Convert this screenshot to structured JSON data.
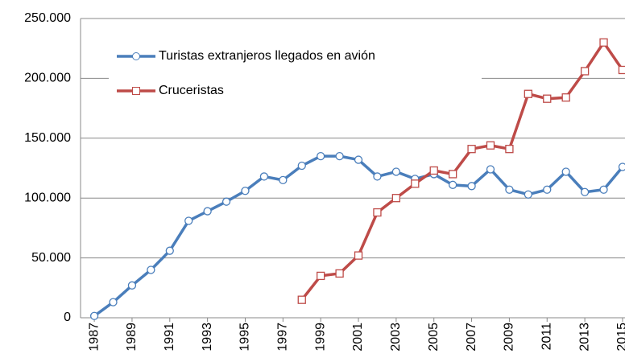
{
  "chart_data": {
    "type": "line",
    "x": [
      1987,
      1988,
      1989,
      1990,
      1991,
      1992,
      1993,
      1994,
      1995,
      1996,
      1997,
      1998,
      1999,
      2000,
      2001,
      2002,
      2003,
      2004,
      2005,
      2006,
      2007,
      2008,
      2009,
      2010,
      2011,
      2012,
      2013,
      2014,
      2015
    ],
    "series": [
      {
        "name": "Turistas extranjeros llegados en avión",
        "color": "#4a7ebb",
        "marker": "circle",
        "values": [
          1500,
          13000,
          27000,
          40000,
          56000,
          81000,
          89000,
          97000,
          106000,
          118000,
          115000,
          127000,
          135000,
          135000,
          132000,
          118000,
          122000,
          116000,
          120000,
          111000,
          110000,
          124000,
          107000,
          103000,
          107000,
          122000,
          105000,
          107000,
          126000
        ]
      },
      {
        "name": "Cruceristas",
        "color": "#be4b48",
        "marker": "square",
        "values": [
          null,
          null,
          null,
          null,
          null,
          null,
          null,
          null,
          null,
          null,
          null,
          15000,
          35000,
          37000,
          52000,
          88000,
          100000,
          112000,
          123000,
          120000,
          141000,
          144000,
          141000,
          187000,
          183000,
          184000,
          206000,
          230000,
          207000
        ]
      }
    ],
    "xlim": [
      1986.27,
      2015.13
    ],
    "xticks": [
      1987,
      1989,
      1991,
      1993,
      1995,
      1997,
      1999,
      2001,
      2003,
      2005,
      2007,
      2009,
      2011,
      2013,
      2015
    ],
    "ylim": [
      0,
      250000
    ],
    "yticks": [
      0,
      {
        "value": 50000,
        "label": "50.000"
      },
      {
        "value": 100000,
        "label": "100.000"
      },
      {
        "value": 150000,
        "label": "150.000"
      },
      {
        "value": 200000,
        "label": "200.000"
      },
      {
        "value": 250000,
        "label": "250.000"
      }
    ],
    "grid": true
  }
}
